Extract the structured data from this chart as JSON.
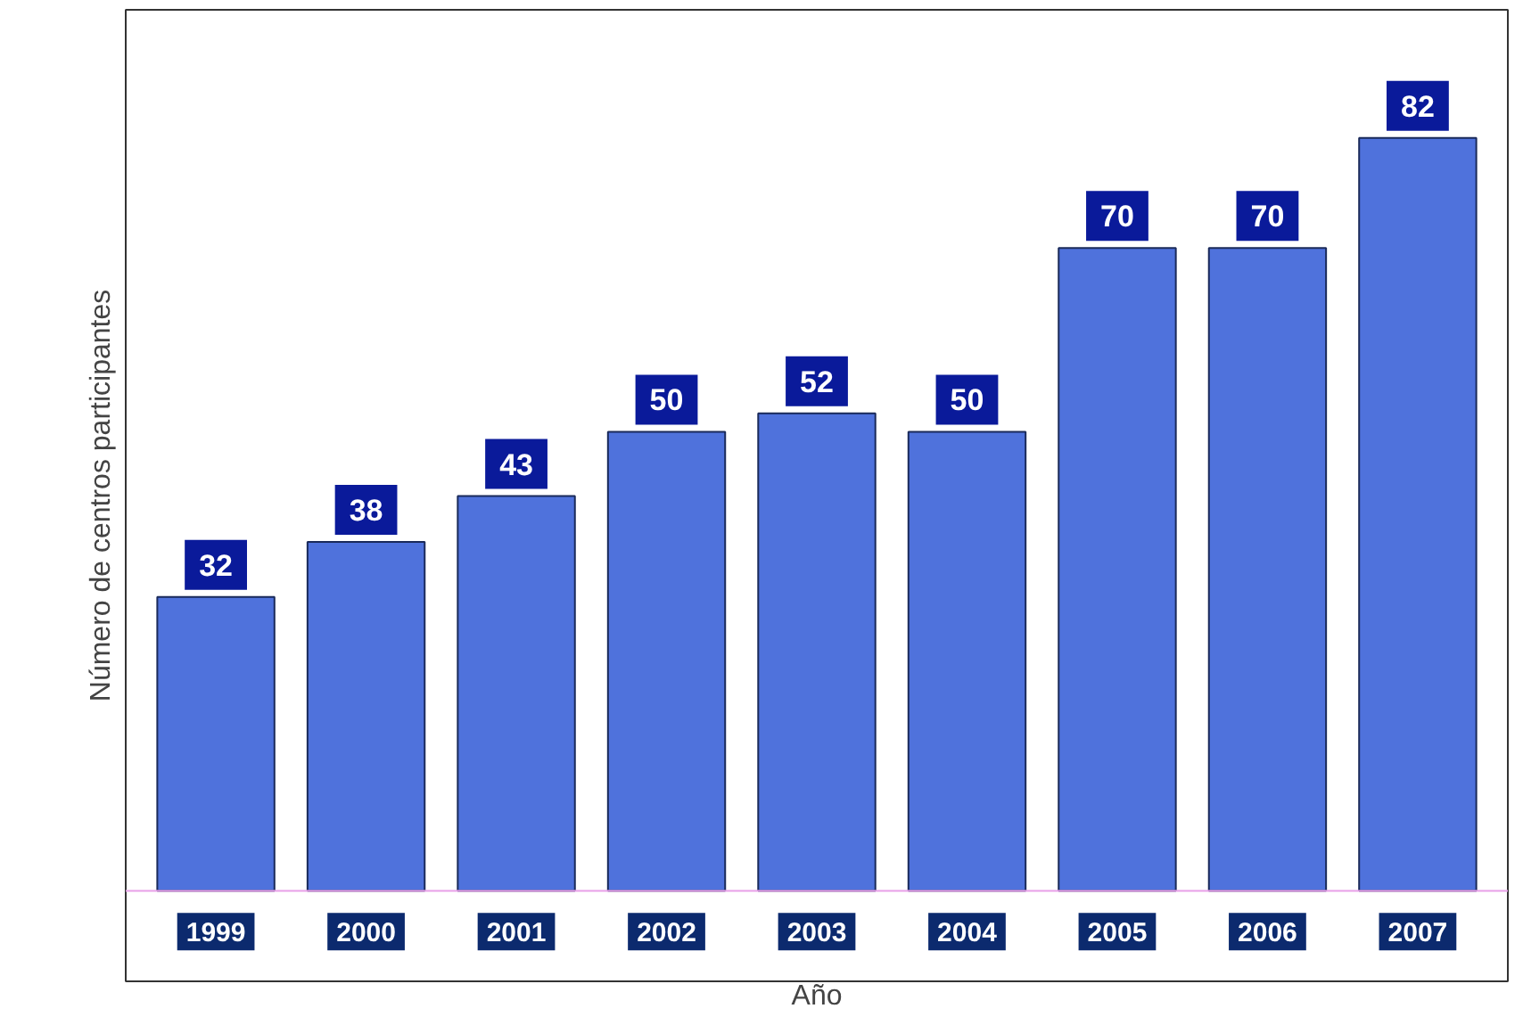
{
  "chart_data": {
    "type": "bar",
    "xlabel": "Año",
    "ylabel": "Número de centros participantes",
    "categories": [
      "1999",
      "2000",
      "2001",
      "2002",
      "2003",
      "2004",
      "2005",
      "2006",
      "2007"
    ],
    "values": [
      32,
      38,
      43,
      50,
      52,
      50,
      70,
      70,
      82
    ],
    "color": "#4f72dc",
    "data_labels": true
  }
}
